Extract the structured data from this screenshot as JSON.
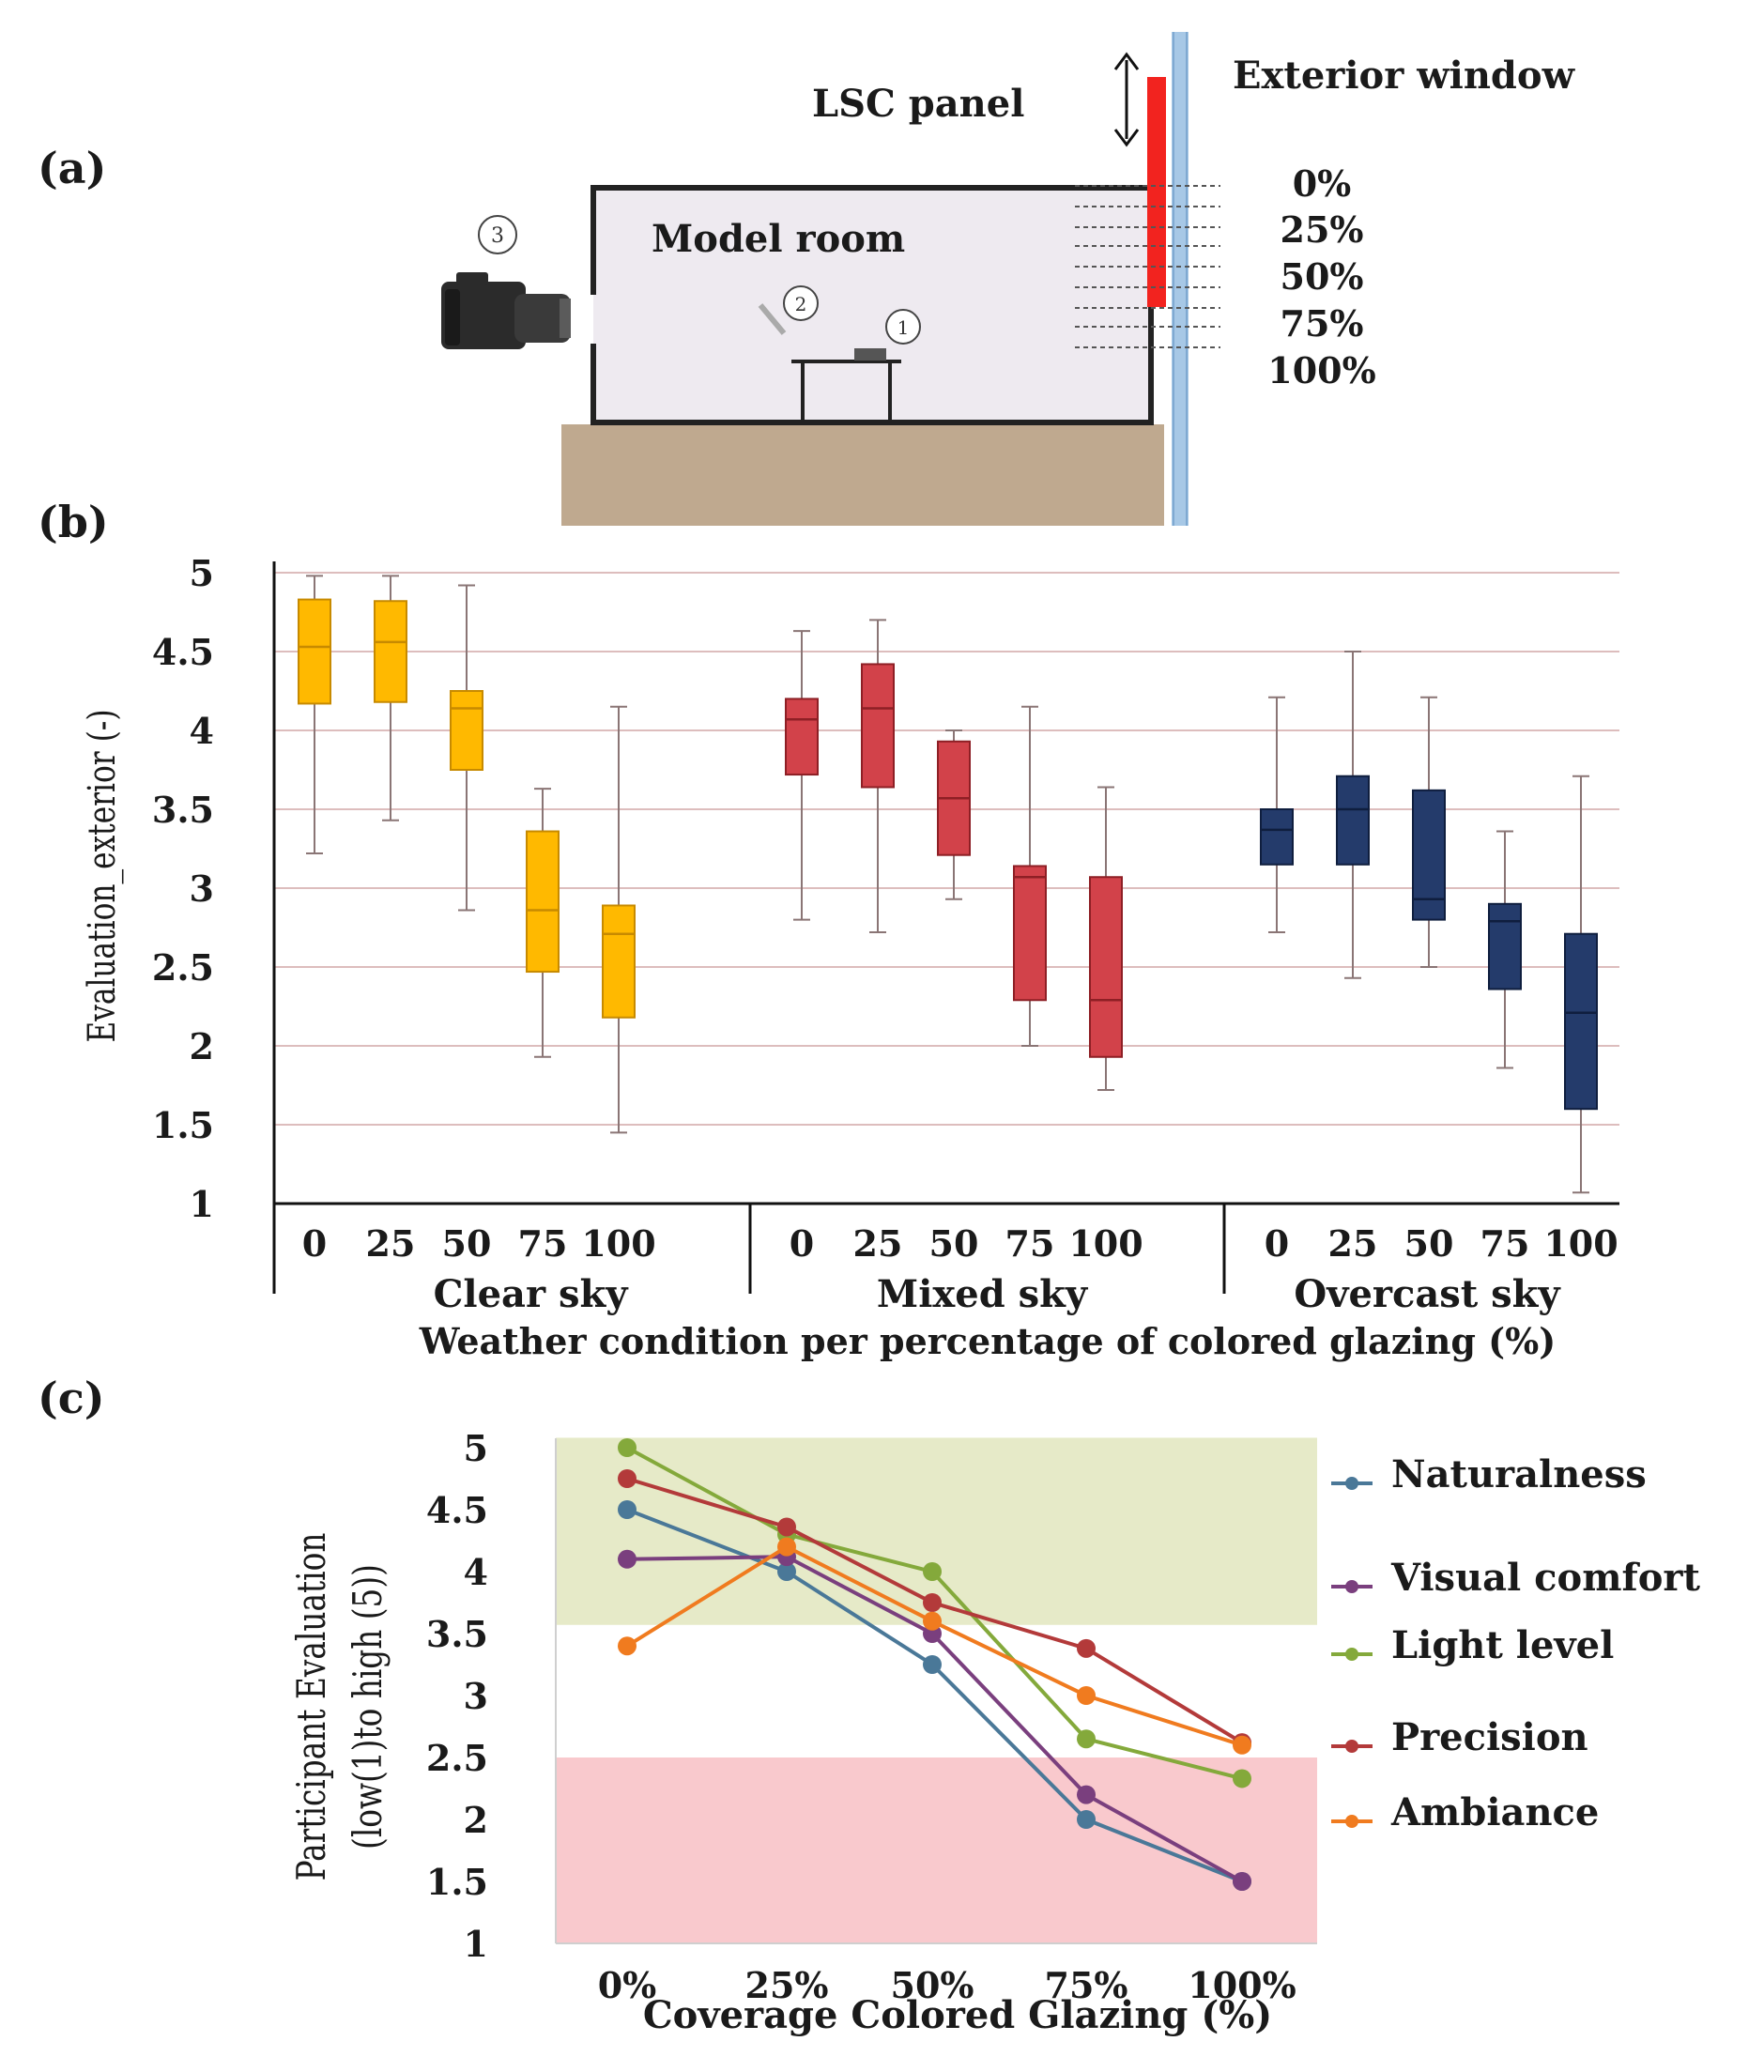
{
  "colors": {
    "clear": "#FFB900",
    "clear_stroke": "#C78A00",
    "mixed": "#D2424A",
    "mixed_stroke": "#8E1F25",
    "overcast": "#243B6B",
    "overcast_stroke": "#0F1E3E",
    "whisker": "#8A7575",
    "grid": "#DDBDBD",
    "naturalness": "#4A7898",
    "visual_comfort": "#7A3F7E",
    "light_level": "#84A93B",
    "precision": "#B33A3A",
    "ambiance": "#F07B1F",
    "good_band": "#E6EAC8",
    "bad_band": "#F9C9CD",
    "panel_red": "#F2231F",
    "floor": "#BFA98F",
    "room_fill": "#EEEAF0",
    "window_blue": "#A7C8E6"
  },
  "panel_a": {
    "label": "(a)",
    "lsc_label": "LSC panel",
    "window_label": "Exterior window",
    "room_label": "Model room",
    "percent_labels": [
      "0%",
      "25%",
      "50%",
      "75%",
      "100%"
    ],
    "markers": [
      "1",
      "2",
      "3"
    ]
  },
  "chart_data": [
    {
      "panel_label": "(b)",
      "type": "box",
      "ylabel": "Evaluation_exterior (-)",
      "xlabel": "Weather condition per percentage of colored glazing (%)",
      "ylim": [
        1,
        5
      ],
      "yticks": [
        "1",
        "1.5",
        "2",
        "2.5",
        "3",
        "3.5",
        "4",
        "4.5",
        "5"
      ],
      "grid": true,
      "groups": [
        {
          "name": "Clear sky",
          "color_key": "clear",
          "categories": [
            "0",
            "25",
            "50",
            "75",
            "100"
          ],
          "boxes": [
            {
              "min": 3.22,
              "q1": 4.17,
              "median": 4.53,
              "q3": 4.83,
              "max": 4.98
            },
            {
              "min": 3.43,
              "q1": 4.18,
              "median": 4.56,
              "q3": 4.82,
              "max": 4.98
            },
            {
              "min": 2.86,
              "q1": 3.75,
              "median": 4.14,
              "q3": 4.25,
              "max": 4.92
            },
            {
              "min": 1.93,
              "q1": 2.47,
              "median": 2.86,
              "q3": 3.36,
              "max": 3.63
            },
            {
              "min": 1.45,
              "q1": 2.18,
              "median": 2.71,
              "q3": 2.89,
              "max": 4.15
            }
          ]
        },
        {
          "name": "Mixed sky",
          "color_key": "mixed",
          "categories": [
            "0",
            "25",
            "50",
            "75",
            "100"
          ],
          "boxes": [
            {
              "min": 2.8,
              "q1": 3.72,
              "median": 4.07,
              "q3": 4.2,
              "max": 4.63
            },
            {
              "min": 2.72,
              "q1": 3.64,
              "median": 4.14,
              "q3": 4.42,
              "max": 4.7
            },
            {
              "min": 2.93,
              "q1": 3.21,
              "median": 3.57,
              "q3": 3.93,
              "max": 4.0
            },
            {
              "min": 2.0,
              "q1": 2.29,
              "median": 3.07,
              "q3": 3.14,
              "max": 4.15
            },
            {
              "min": 1.72,
              "q1": 1.93,
              "median": 2.29,
              "q3": 3.07,
              "max": 3.64
            }
          ]
        },
        {
          "name": "Overcast sky",
          "color_key": "overcast",
          "categories": [
            "0",
            "25",
            "50",
            "75",
            "100"
          ],
          "boxes": [
            {
              "min": 2.72,
              "q1": 3.15,
              "median": 3.37,
              "q3": 3.5,
              "max": 4.21
            },
            {
              "min": 2.43,
              "q1": 3.15,
              "median": 3.5,
              "q3": 3.71,
              "max": 4.5
            },
            {
              "min": 2.5,
              "q1": 2.8,
              "median": 2.93,
              "q3": 3.62,
              "max": 4.21
            },
            {
              "min": 1.86,
              "q1": 2.36,
              "median": 2.79,
              "q3": 2.9,
              "max": 3.36
            },
            {
              "min": 1.07,
              "q1": 1.6,
              "median": 2.21,
              "q3": 2.71,
              "max": 3.71
            }
          ]
        }
      ]
    },
    {
      "panel_label": "(c)",
      "type": "line",
      "ylabel": "Participant Evaluation",
      "ylabel2": "(low(1)to high (5))",
      "xlabel": "Coverage Colored Glazing (%)",
      "categories": [
        "0%",
        "25%",
        "50%",
        "75%",
        "100%"
      ],
      "ylim": [
        1,
        5
      ],
      "yticks": [
        "1",
        "1.5",
        "2",
        "2.5",
        "3",
        "3.5",
        "4",
        "4.5",
        "5"
      ],
      "bands": [
        {
          "name": "good",
          "from": 3.57,
          "to": 5.08,
          "color_key": "good_band"
        },
        {
          "name": "bad",
          "from": 1.0,
          "to": 2.5,
          "color_key": "bad_band"
        }
      ],
      "series": [
        {
          "name": "Naturalness",
          "color_key": "naturalness",
          "values": [
            4.5,
            4.0,
            3.25,
            2.0,
            1.5
          ]
        },
        {
          "name": "Visual comfort",
          "color_key": "visual_comfort",
          "values": [
            4.1,
            4.12,
            3.5,
            2.2,
            1.5
          ]
        },
        {
          "name": "Light level",
          "color_key": "light_level",
          "values": [
            5.0,
            4.3,
            4.0,
            2.65,
            2.33
          ]
        },
        {
          "name": "Precision",
          "color_key": "precision",
          "values": [
            4.75,
            4.36,
            3.75,
            3.38,
            2.62
          ]
        },
        {
          "name": "Ambiance",
          "color_key": "ambiance",
          "values": [
            3.4,
            4.2,
            3.6,
            3.0,
            2.6
          ]
        }
      ]
    }
  ]
}
